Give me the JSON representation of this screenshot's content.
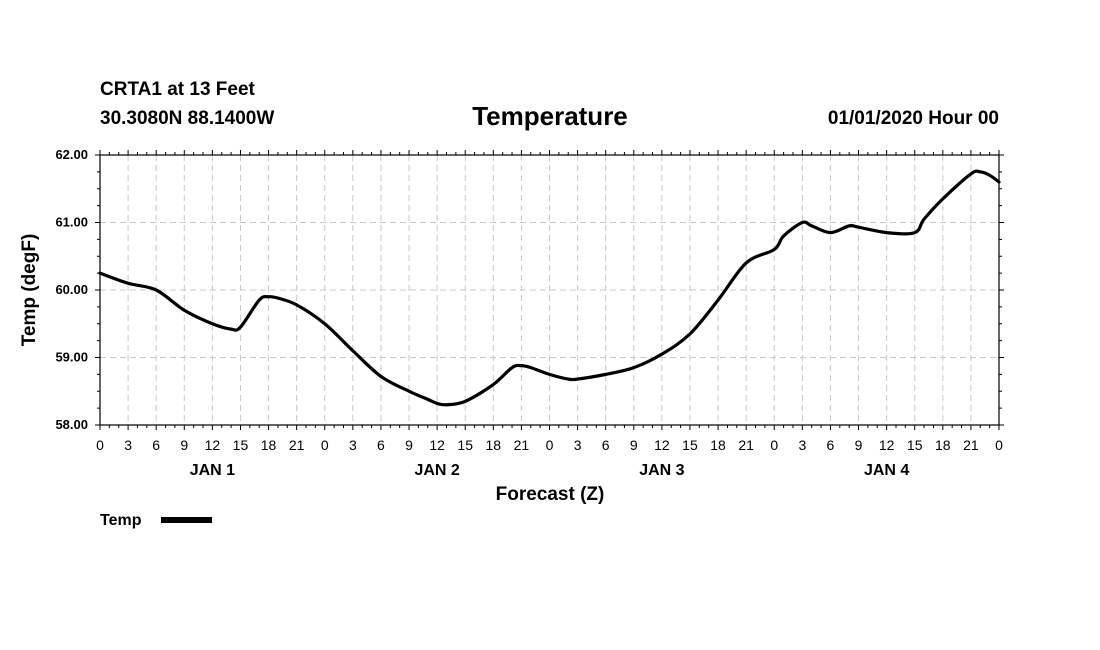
{
  "header": {
    "station": "CRTA1 at 13 Feet",
    "coords": "30.3080N 88.1400W",
    "title": "Temperature",
    "datetime": "01/01/2020 Hour 00"
  },
  "chart_data": {
    "type": "line",
    "title": "Temperature",
    "xlabel": "Forecast (Z)",
    "ylabel": "Temp (degF)",
    "xlim": [
      0,
      96
    ],
    "ylim": [
      58.0,
      62.0
    ],
    "y_ticks": [
      "58.00",
      "59.00",
      "60.00",
      "61.00",
      "62.00"
    ],
    "x_tick_labels": [
      "0",
      "3",
      "6",
      "9",
      "12",
      "15",
      "18",
      "21",
      "0",
      "3",
      "6",
      "9",
      "12",
      "15",
      "18",
      "21",
      "0",
      "3",
      "6",
      "9",
      "12",
      "15",
      "18",
      "21",
      "0",
      "3",
      "6",
      "9",
      "12",
      "15",
      "18",
      "21",
      "0"
    ],
    "day_labels": [
      {
        "label": "JAN 1",
        "hour": 12
      },
      {
        "label": "JAN 2",
        "hour": 36
      },
      {
        "label": "JAN 3",
        "hour": 60
      },
      {
        "label": "JAN 4",
        "hour": 84
      }
    ],
    "grid": true,
    "legend_position": "bottom-left",
    "series": [
      {
        "name": "Temp",
        "color": "#000000",
        "x": [
          0,
          3,
          6,
          9,
          12,
          14,
          15,
          17,
          18,
          19,
          21,
          24,
          27,
          30,
          33,
          35,
          36,
          37,
          39,
          42,
          44,
          45,
          46,
          48,
          50,
          51,
          54,
          57,
          60,
          63,
          66,
          69,
          72,
          73,
          75,
          76,
          78,
          80,
          81,
          84,
          87,
          88,
          90,
          93,
          94,
          95,
          96
        ],
        "values": [
          60.25,
          60.1,
          60.0,
          59.7,
          59.5,
          59.42,
          59.45,
          59.85,
          59.9,
          59.88,
          59.78,
          59.5,
          59.1,
          58.72,
          58.5,
          58.38,
          58.32,
          58.3,
          58.35,
          58.6,
          58.85,
          58.88,
          58.85,
          58.75,
          58.68,
          58.68,
          58.75,
          58.85,
          59.05,
          59.35,
          59.85,
          60.4,
          60.6,
          60.8,
          61.0,
          60.95,
          60.85,
          60.95,
          60.93,
          60.85,
          60.85,
          61.05,
          61.35,
          61.72,
          61.75,
          61.7,
          61.6
        ]
      }
    ]
  }
}
